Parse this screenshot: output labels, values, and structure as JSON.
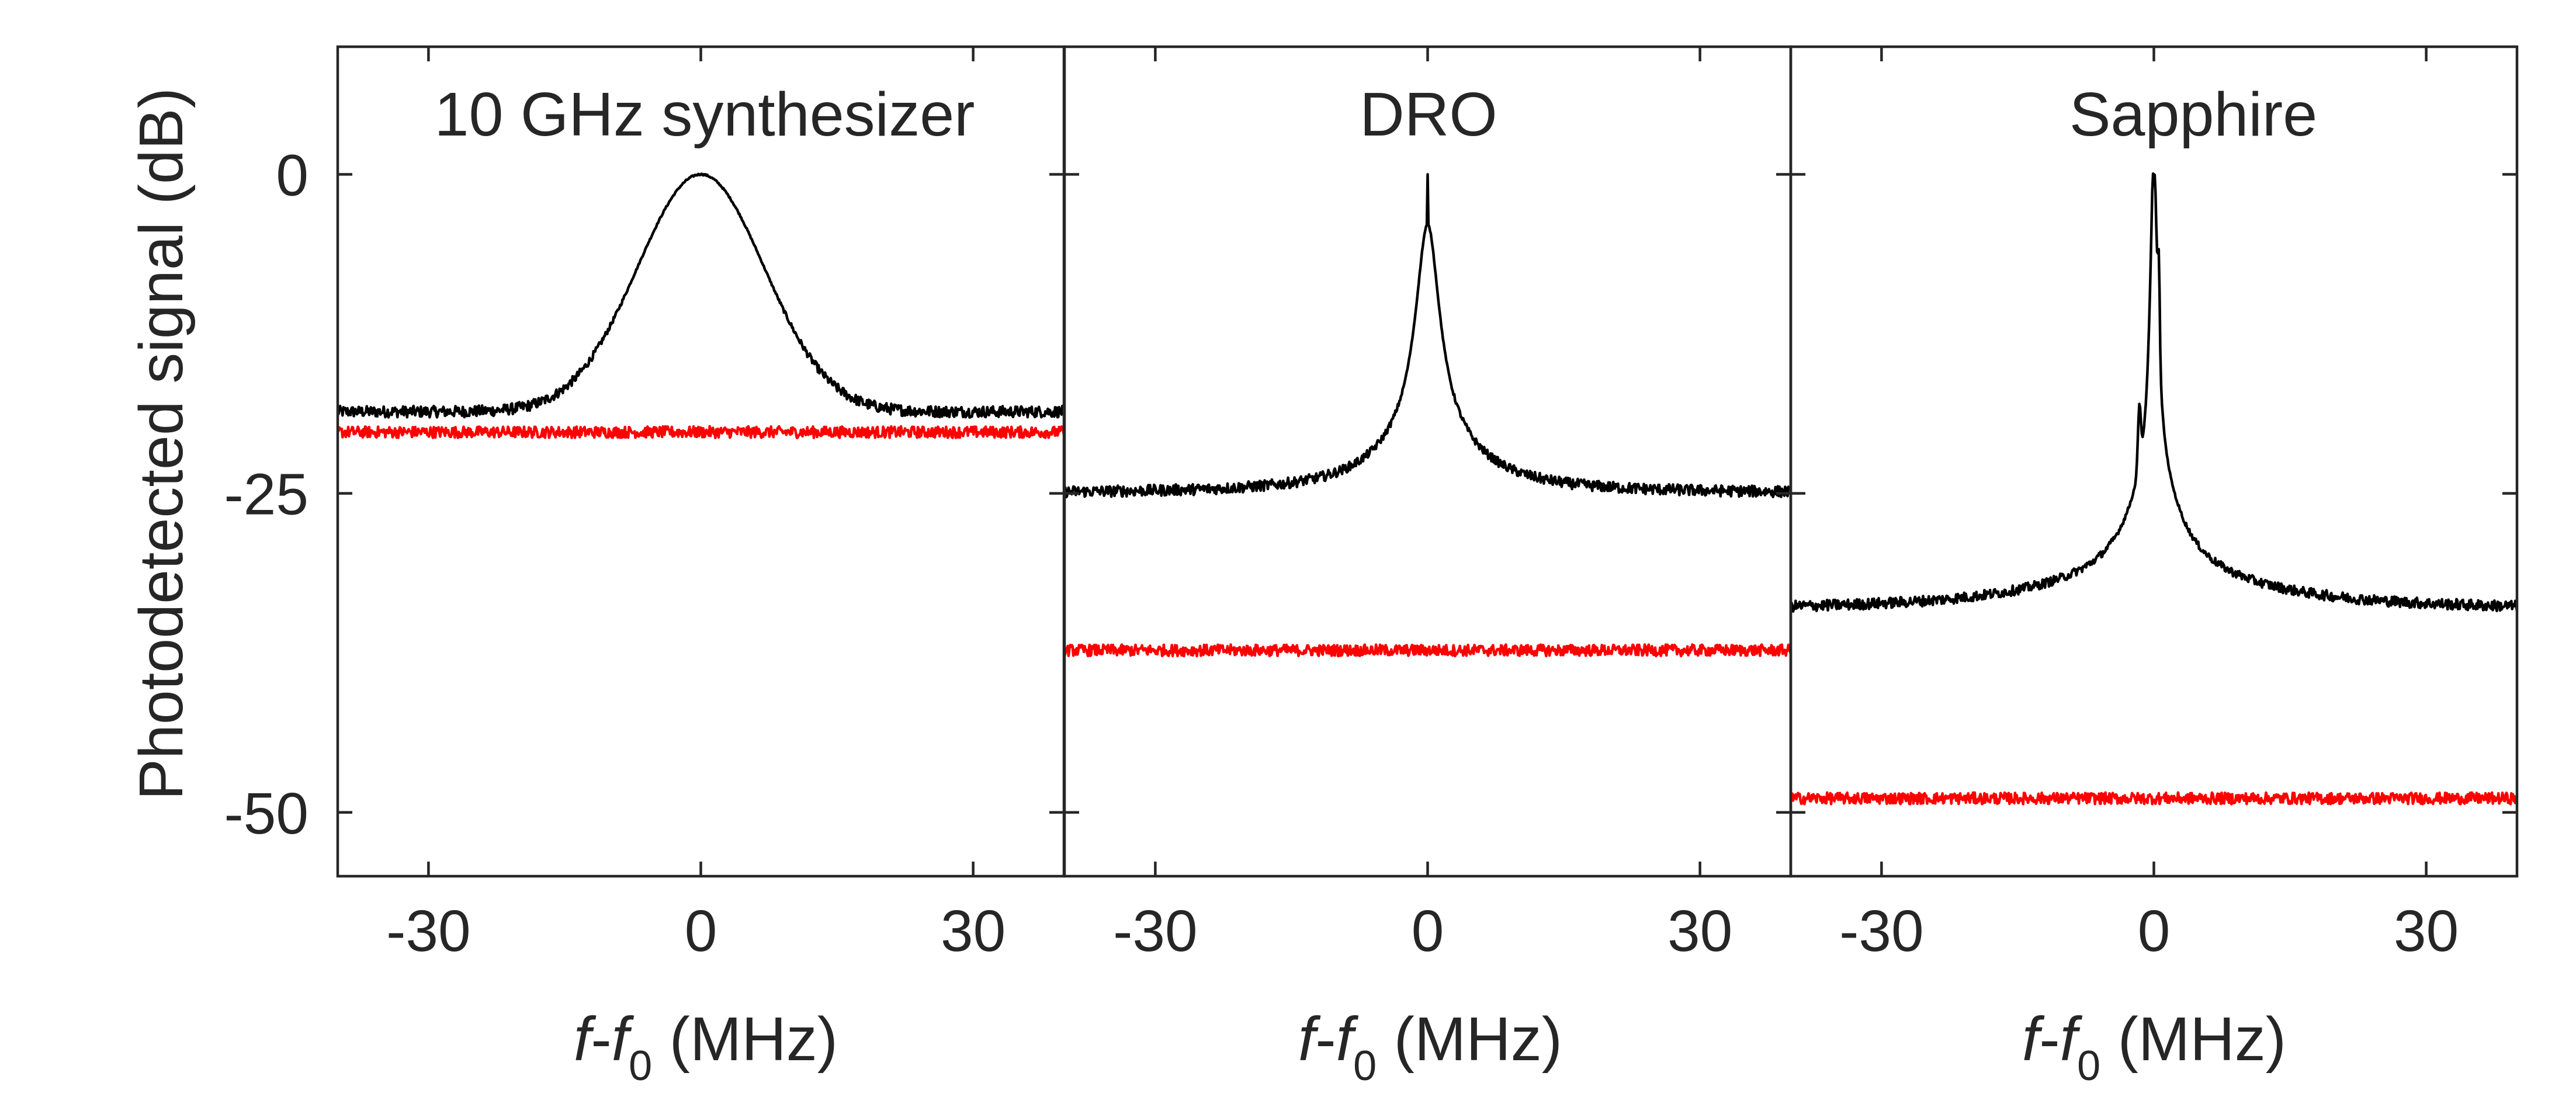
{
  "chart_data": {
    "type": "line",
    "ylabel": "Photodetected signal (dB)",
    "ylim": [
      -55,
      10
    ],
    "yticks": [
      0,
      -25,
      -50
    ],
    "ytick_labels": [
      "0",
      "-25",
      "-50"
    ],
    "xlim": [
      -40,
      40
    ],
    "xticks": [
      -30,
      0,
      30
    ],
    "xtick_labels": [
      "-30",
      "0",
      "30"
    ],
    "xlabel_parts": {
      "f1": "f",
      "dash": "-",
      "f2": "f",
      "sub": "0",
      "unit": " (MHz)"
    },
    "colors": {
      "on_trace": "#000000",
      "off_trace": "#ff0000",
      "axes": "#262626"
    },
    "panels": [
      {
        "title": "10 GHz synthesizer",
        "series": [
          {
            "color": "#000000",
            "baseline": -18.6,
            "peak": 0.0,
            "shape": "gaussian",
            "width_mhz": 7,
            "noise_db": 0.9,
            "points": [
              [
                -40,
                -18.6
              ],
              [
                -20,
                -18.5
              ],
              [
                -12,
                -15
              ],
              [
                -6,
                -7
              ],
              [
                0,
                0
              ],
              [
                6,
                -7
              ],
              [
                12,
                -15
              ],
              [
                20,
                -18.5
              ],
              [
                40,
                -18.5
              ]
            ]
          },
          {
            "color": "#ff0000",
            "baseline": -20.2,
            "noise_db": 0.9,
            "points": [
              [
                -40,
                -20.2
              ],
              [
                0,
                -20.2
              ],
              [
                40,
                -20.2
              ]
            ]
          }
        ]
      },
      {
        "title": "DRO",
        "series": [
          {
            "color": "#000000",
            "baseline": -25.0,
            "peak": 0.0,
            "shape": "lorentzian",
            "width_mhz": 1.6,
            "noise_db": 0.9,
            "points": [
              [
                -40,
                -25
              ],
              [
                -20,
                -23
              ],
              [
                -8,
                -19
              ],
              [
                -2,
                -9
              ],
              [
                0,
                0
              ],
              [
                2,
                -9
              ],
              [
                8,
                -19
              ],
              [
                20,
                -23
              ],
              [
                40,
                -25
              ]
            ]
          },
          {
            "color": "#ff0000",
            "baseline": -37.3,
            "noise_db": 0.9,
            "points": [
              [
                -40,
                -37.3
              ],
              [
                0,
                -37.2
              ],
              [
                40,
                -37.3
              ]
            ]
          }
        ]
      },
      {
        "title": "Sapphire",
        "series": [
          {
            "color": "#000000",
            "baseline": -34.2,
            "peak": 0.0,
            "shape": "narrow-line",
            "width_mhz": 0.5,
            "noise_db": 0.9,
            "points": [
              [
                -40,
                -34.2
              ],
              [
                -20,
                -32.5
              ],
              [
                -8,
                -29
              ],
              [
                -3,
                -20
              ],
              [
                0,
                0
              ],
              [
                0.5,
                -14
              ],
              [
                3,
                -20
              ],
              [
                8,
                -30
              ],
              [
                20,
                -33
              ],
              [
                40,
                -34.3
              ]
            ]
          },
          {
            "color": "#ff0000",
            "baseline": -48.9,
            "noise_db": 0.9,
            "points": [
              [
                -40,
                -48.9
              ],
              [
                0,
                -48.9
              ],
              [
                40,
                -48.9
              ]
            ]
          }
        ]
      }
    ]
  }
}
